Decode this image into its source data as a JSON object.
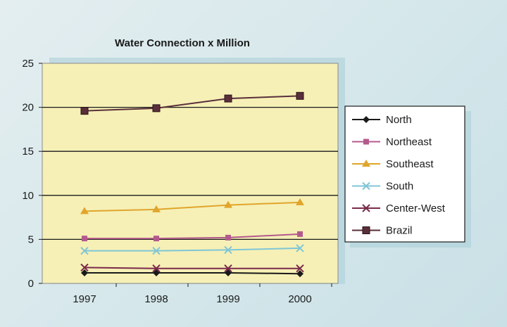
{
  "chart_data": {
    "type": "line",
    "title": "Water Connection x Million",
    "xlabel": "",
    "ylabel": "",
    "categories": [
      "1997",
      "1998",
      "1999",
      "2000"
    ],
    "ylim": [
      0,
      25
    ],
    "yticks": [
      0,
      5,
      10,
      15,
      20,
      25
    ],
    "grid": true,
    "legend_position": "right",
    "series": [
      {
        "name": "North",
        "values": [
          1.2,
          1.2,
          1.2,
          1.1
        ],
        "color": "#1a1a1a",
        "marker": "diamond"
      },
      {
        "name": "Northeast",
        "values": [
          5.1,
          5.1,
          5.2,
          5.6
        ],
        "color": "#b35a8c",
        "marker": "square"
      },
      {
        "name": "Southeast",
        "values": [
          8.2,
          8.4,
          8.9,
          9.2
        ],
        "color": "#e0a52c",
        "marker": "triangle"
      },
      {
        "name": "South",
        "values": [
          3.7,
          3.7,
          3.8,
          4.0
        ],
        "color": "#7fc6d6",
        "marker": "x"
      },
      {
        "name": "Center-West",
        "values": [
          1.8,
          1.7,
          1.7,
          1.7
        ],
        "color": "#7a2a4a",
        "marker": "x"
      },
      {
        "name": "Brazil",
        "values": [
          19.6,
          19.9,
          21.0,
          21.3
        ],
        "color": "#5a2f3a",
        "marker": "square-dark"
      }
    ]
  },
  "colors": {
    "plot_background": "#f6f0b6",
    "legend_background": "#ffffff",
    "shadow": "#a9ced7"
  }
}
